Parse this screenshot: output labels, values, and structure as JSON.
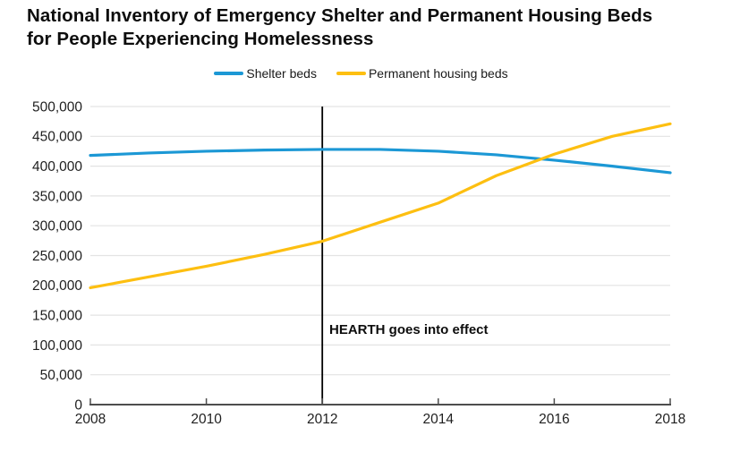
{
  "header": {
    "title": "National Inventory of Emergency Shelter and Permanent Housing Beds for People Experiencing Homelessness"
  },
  "legend": {
    "items": [
      {
        "label": "Shelter beds",
        "color": "#1c98d5"
      },
      {
        "label": "Permanent housing beds",
        "color": "#fdbf11"
      }
    ]
  },
  "chart_data": {
    "type": "line",
    "title": "National Inventory of Emergency Shelter and Permanent Housing Beds for People Experiencing Homelessness",
    "x": [
      2008,
      2009,
      2010,
      2011,
      2012,
      2013,
      2014,
      2015,
      2016,
      2017,
      2018
    ],
    "series": [
      {
        "name": "Shelter beds",
        "color": "#1c98d5",
        "values": [
          418000,
          422000,
          425000,
          427000,
          428000,
          428000,
          425000,
          419000,
          410000,
          400000,
          389000
        ]
      },
      {
        "name": "Permanent housing beds",
        "color": "#fdbf11",
        "values": [
          196000,
          214000,
          232000,
          252000,
          274000,
          306000,
          338000,
          384000,
          420000,
          450000,
          471000
        ]
      }
    ],
    "xlabel": "",
    "ylabel": "",
    "xlim": [
      2008,
      2018
    ],
    "ylim": [
      0,
      500000
    ],
    "y_tick_step": 50000,
    "y_tick_labels": [
      "0",
      "50,000",
      "100,000",
      "150,000",
      "200,000",
      "250,000",
      "300,000",
      "350,000",
      "400,000",
      "450,000",
      "500,000"
    ],
    "x_tick_labels": [
      "2008",
      "2010",
      "2012",
      "2014",
      "2016",
      "2018"
    ],
    "grid": "horizontal",
    "legend_position": "top",
    "annotation_line": {
      "x": 2012,
      "label": "HEARTH goes into effect"
    }
  },
  "colors": {
    "grid": "#e3e3e3",
    "axis": "#4d4d4d",
    "annotation_line": "#000000",
    "tick_label": "#1f1f1f",
    "title_text": "#0d0d0d"
  }
}
